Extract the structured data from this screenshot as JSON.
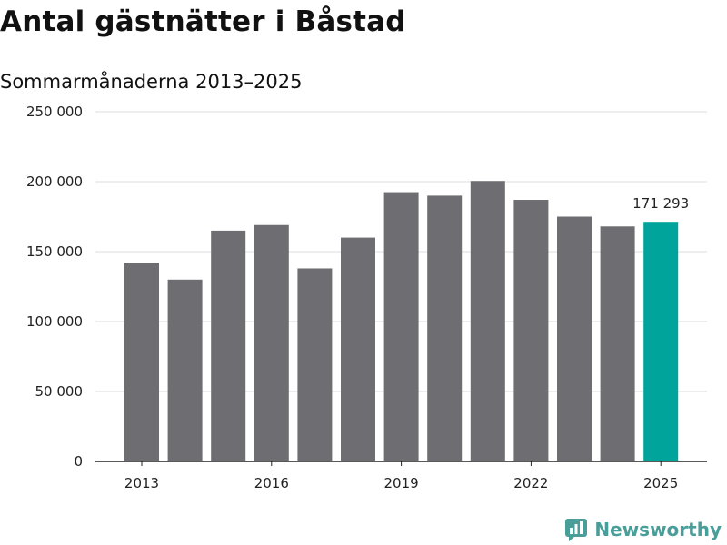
{
  "header": {
    "title": "Antal gästnätter i Båstad",
    "subtitle": "Sommarmånaderna 2013–2025"
  },
  "chart_data": {
    "type": "bar",
    "title": "Antal gästnätter i Båstad",
    "subtitle": "Sommarmånaderna 2013–2025",
    "xlabel": "",
    "ylabel": "",
    "categories": [
      "2013",
      "2014",
      "2015",
      "2016",
      "2017",
      "2018",
      "2019",
      "2020",
      "2021",
      "2022",
      "2023",
      "2024",
      "2025"
    ],
    "values": [
      142000,
      130000,
      165000,
      169000,
      138000,
      160000,
      192500,
      190000,
      200500,
      187000,
      175000,
      168000,
      171293
    ],
    "x_tick_labels": [
      "2013",
      "2016",
      "2019",
      "2022",
      "2025"
    ],
    "y_tick_labels": [
      "0",
      "50 000",
      "100 000",
      "150 000",
      "200 000",
      "250 000"
    ],
    "y_ticks": [
      0,
      50000,
      100000,
      150000,
      200000,
      250000
    ],
    "ylim": [
      0,
      250000
    ],
    "grid": true,
    "highlight_index": 12,
    "data_labels": [
      {
        "index": 12,
        "text": "171 293"
      }
    ],
    "colors": {
      "bar": "#6d6d72",
      "highlight": "#00a49a",
      "grid": "#dddddd",
      "axis": "#222222"
    }
  },
  "brand": {
    "name": "Newsworthy",
    "icon": "newsworthy-logo-icon",
    "color": "#4a9e9a"
  }
}
